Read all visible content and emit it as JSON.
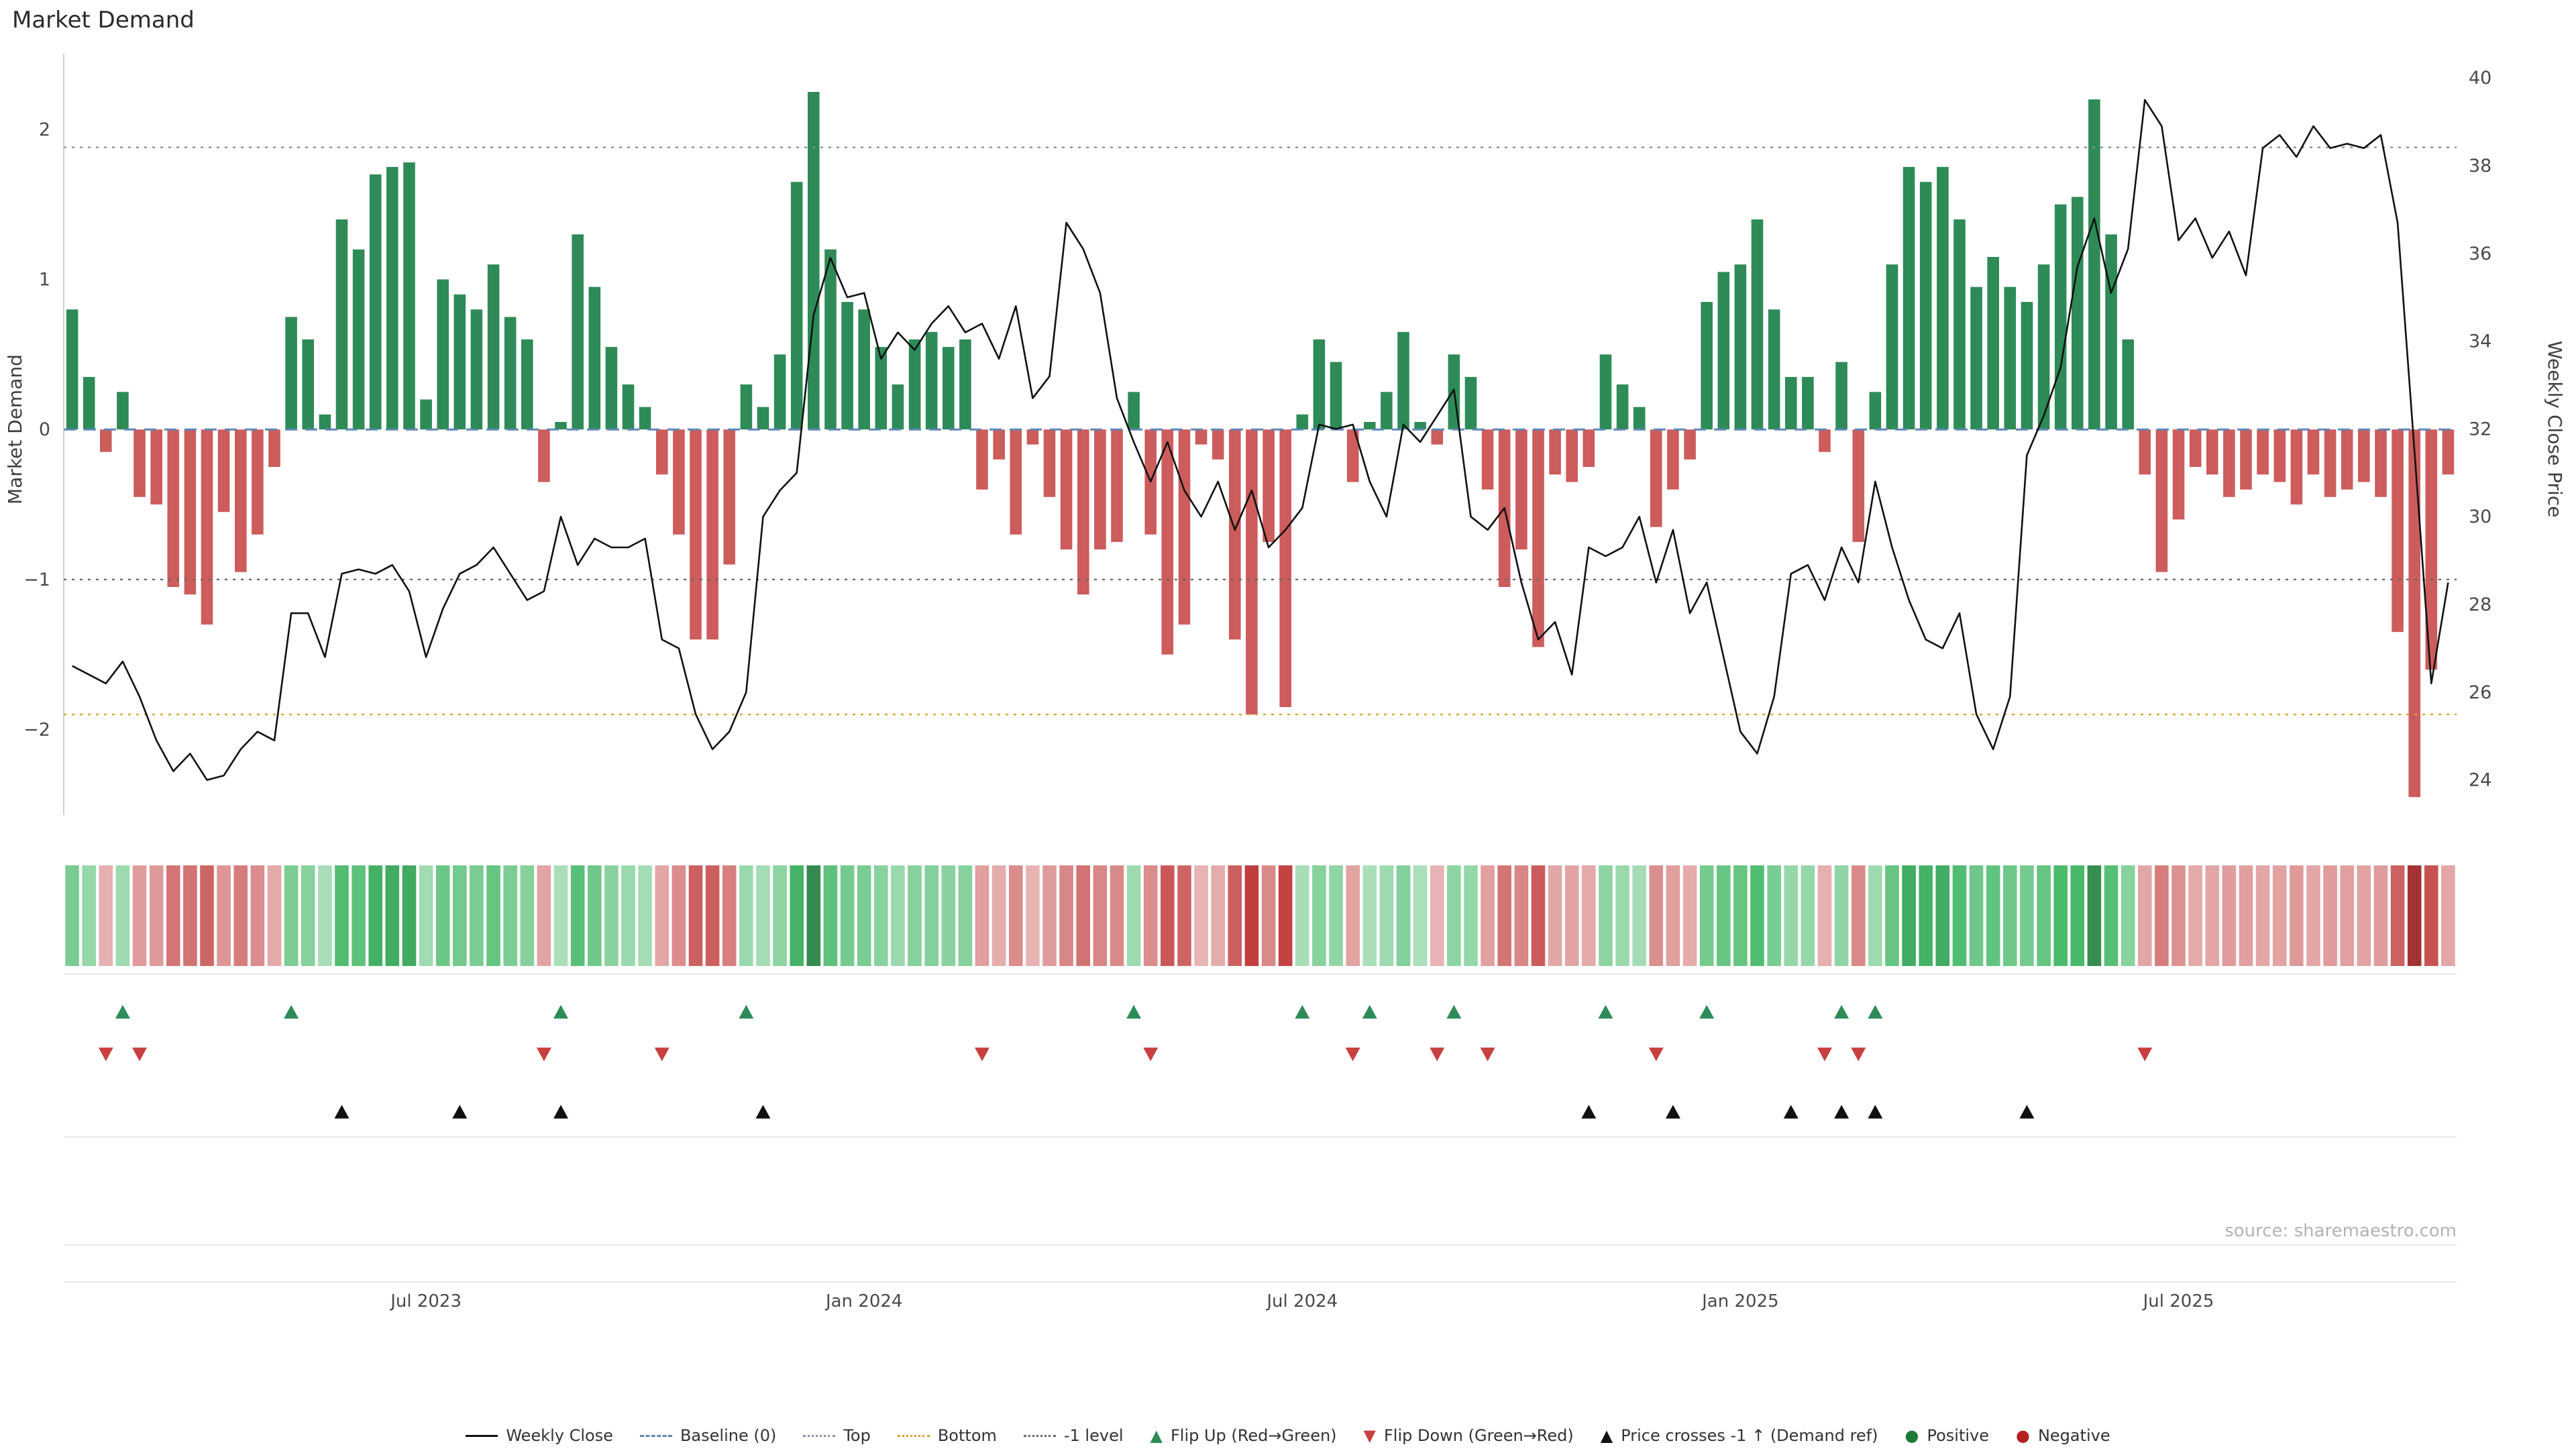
{
  "page": {
    "title": "Market Demand",
    "source": "source: sharemaestro.com"
  },
  "axes": {
    "left_label": "Market Demand",
    "right_label": "Weekly Close Price"
  },
  "colors": {
    "positive_bar": "#2e8b57",
    "negative_bar": "#cd5c5c",
    "price_line": "#111111",
    "baseline": "#5f87b5",
    "top_line": "#8792a8",
    "bottom_line": "#e0a030",
    "minus1_line": "#666666",
    "flip_up": "#2e8b57",
    "flip_down": "#c94040",
    "price_cross": "#111111",
    "grid": "#e9e9e9",
    "spine": "#d0d0d0",
    "tick_text": "#4a4a4a"
  },
  "legend": [
    {
      "label": "Weekly Close",
      "marker": "line",
      "color": "#111111"
    },
    {
      "label": "Baseline (0)",
      "marker": "dashed",
      "color": "#5f87b5"
    },
    {
      "label": "Top",
      "marker": "dotted",
      "color": "#8792a8"
    },
    {
      "label": "Bottom",
      "marker": "dotted",
      "color": "#e0a030"
    },
    {
      "label": "-1 level",
      "marker": "dotted",
      "color": "#666666"
    },
    {
      "label": "Flip Up (Red→Green)",
      "marker": "triangle-up",
      "color": "#2e8b57"
    },
    {
      "label": "Flip Down (Green→Red)",
      "marker": "triangle-down",
      "color": "#c94040"
    },
    {
      "label": "Price crosses -1 ↑ (Demand ref)",
      "marker": "triangle-up",
      "color": "#111111"
    },
    {
      "label": "Positive",
      "marker": "dot",
      "color": "#1e7a34"
    },
    {
      "label": "Negative",
      "marker": "dot",
      "color": "#b22222"
    }
  ],
  "chart_data": {
    "type": "bar",
    "title": "Market Demand",
    "x_tick_labels": [
      "Jul 2023",
      "Jan 2024",
      "Jul 2024",
      "Jan 2025",
      "Jul 2025"
    ],
    "x_tick_weeks": [
      21,
      47,
      73,
      99,
      125
    ],
    "y_left": {
      "label": "Market Demand",
      "ticks": [
        -2,
        -1,
        0,
        1,
        2
      ],
      "lim": [
        -2.57,
        2.46
      ]
    },
    "y_right": {
      "label": "Weekly Close Price",
      "ticks": [
        24,
        26,
        28,
        30,
        32,
        34,
        36,
        38,
        40
      ],
      "lim": [
        23.2,
        40.4
      ]
    },
    "reference_lines": {
      "baseline": 0,
      "top": 1.88,
      "bottom": -1.9,
      "minus1": -1
    },
    "grid": false,
    "legend_position": "bottom",
    "series": [
      {
        "name": "Market Demand",
        "type": "bar",
        "axis": "left",
        "values": [
          0.8,
          0.35,
          -0.15,
          0.25,
          -0.45,
          -0.5,
          -1.05,
          -1.1,
          -1.3,
          -0.55,
          -0.95,
          -0.7,
          -0.25,
          0.75,
          0.6,
          0.1,
          1.4,
          1.2,
          1.7,
          1.75,
          1.78,
          0.2,
          1.0,
          0.9,
          0.8,
          1.1,
          0.75,
          0.6,
          -0.35,
          0.05,
          1.3,
          0.95,
          0.55,
          0.3,
          0.15,
          -0.3,
          -0.7,
          -1.4,
          -1.4,
          -0.9,
          0.3,
          0.15,
          0.5,
          1.65,
          2.25,
          1.2,
          0.85,
          0.8,
          0.55,
          0.3,
          0.6,
          0.65,
          0.55,
          0.6,
          -0.4,
          -0.2,
          -0.7,
          -0.1,
          -0.45,
          -0.8,
          -1.1,
          -0.8,
          -0.75,
          0.25,
          -0.7,
          -1.5,
          -1.3,
          -0.1,
          -0.2,
          -1.4,
          -1.9,
          -0.75,
          -1.85,
          0.1,
          0.6,
          0.45,
          -0.35,
          0.05,
          0.25,
          0.65,
          0.05,
          -0.1,
          0.5,
          0.35,
          -0.4,
          -1.05,
          -0.8,
          -1.45,
          -0.3,
          -0.35,
          -0.25,
          0.5,
          0.3,
          0.15,
          -0.65,
          -0.4,
          -0.2,
          0.85,
          1.05,
          1.1,
          1.4,
          0.8,
          0.35,
          0.35,
          -0.15,
          0.45,
          -0.75,
          0.25,
          1.1,
          1.75,
          1.65,
          1.75,
          1.4,
          0.95,
          1.15,
          0.95,
          0.85,
          1.1,
          1.5,
          1.55,
          2.2,
          1.3,
          0.6,
          -0.3,
          -0.95,
          -0.6,
          -0.25,
          -0.3,
          -0.45,
          -0.4,
          -0.3,
          -0.35,
          -0.5,
          -0.3,
          -0.45,
          -0.4,
          -0.35,
          -0.45,
          -1.35,
          -2.45,
          -1.6,
          -0.3
        ]
      },
      {
        "name": "Weekly Close",
        "type": "line",
        "axis": "right",
        "values": [
          26.6,
          26.4,
          26.2,
          26.7,
          25.9,
          24.9,
          24.2,
          24.6,
          24.0,
          24.1,
          24.7,
          25.1,
          24.9,
          27.8,
          27.8,
          26.8,
          28.7,
          28.8,
          28.7,
          28.9,
          28.3,
          26.8,
          27.9,
          28.7,
          28.9,
          29.3,
          28.7,
          28.1,
          28.3,
          30.0,
          28.9,
          29.5,
          29.3,
          29.3,
          29.5,
          27.2,
          27.0,
          25.5,
          24.7,
          25.1,
          26.0,
          30.0,
          30.6,
          31.0,
          34.6,
          35.9,
          35.0,
          35.1,
          33.6,
          34.2,
          33.8,
          34.4,
          34.8,
          34.2,
          34.4,
          33.6,
          34.8,
          32.7,
          33.2,
          36.7,
          36.1,
          35.1,
          32.7,
          31.7,
          30.8,
          31.7,
          30.6,
          30.0,
          30.8,
          29.7,
          30.6,
          29.3,
          29.7,
          30.2,
          32.1,
          32.0,
          32.1,
          30.8,
          30.0,
          32.1,
          31.7,
          32.3,
          32.9,
          30.0,
          29.7,
          30.2,
          28.5,
          27.2,
          27.6,
          26.4,
          29.3,
          29.1,
          29.3,
          30.0,
          28.5,
          29.7,
          27.8,
          28.5,
          26.8,
          25.1,
          24.6,
          25.9,
          28.7,
          28.9,
          28.1,
          29.3,
          28.5,
          30.8,
          29.3,
          28.1,
          27.2,
          27.0,
          27.8,
          25.5,
          24.7,
          25.9,
          31.4,
          32.3,
          33.4,
          35.7,
          36.8,
          35.1,
          36.1,
          39.5,
          38.9,
          36.3,
          36.8,
          35.9,
          36.5,
          35.5,
          38.4,
          38.7,
          38.2,
          38.9,
          38.4,
          38.5,
          38.4,
          38.7,
          36.7,
          31.5,
          26.2,
          28.5
        ]
      }
    ]
  }
}
